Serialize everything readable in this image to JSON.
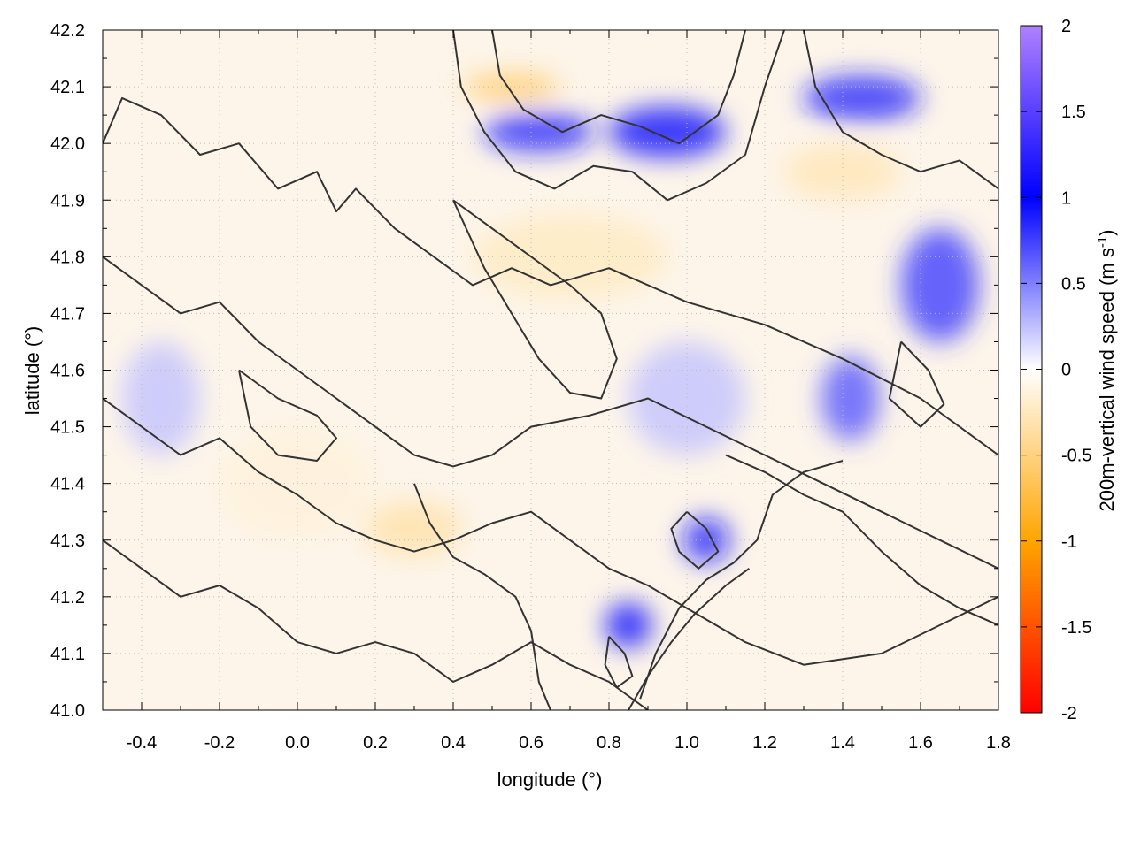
{
  "chart_data": {
    "type": "heatmap",
    "xlabel": "longitude (°)",
    "ylabel": "latitude (°)",
    "xlim": [
      -0.5,
      1.8
    ],
    "ylim": [
      41.0,
      42.2
    ],
    "x_ticks": [
      -0.4,
      -0.2,
      0.0,
      0.2,
      0.4,
      0.6,
      0.8,
      1.0,
      1.2,
      1.4,
      1.6,
      1.8
    ],
    "x_tick_labels": [
      "-0.4",
      "-0.2",
      "0.0",
      "0.2",
      "0.4",
      "0.6",
      "0.8",
      "1.0",
      "1.2",
      "1.4",
      "1.6",
      "1.8"
    ],
    "y_ticks": [
      41.0,
      41.1,
      41.2,
      41.3,
      41.4,
      41.5,
      41.6,
      41.7,
      41.8,
      41.9,
      42.0,
      42.1,
      42.2
    ],
    "y_tick_labels": [
      "41.0",
      "41.1",
      "41.2",
      "41.3",
      "41.4",
      "41.5",
      "41.6",
      "41.7",
      "41.8",
      "41.9",
      "42.0",
      "42.1",
      "42.2"
    ],
    "grid": true,
    "colorbar": {
      "label_main": "200m-vertical wind speed (m s",
      "label_sup": "-1",
      "label_close": ")",
      "range": [
        -2,
        2
      ],
      "ticks": [
        2,
        1.5,
        1,
        0.5,
        0,
        -0.5,
        -1,
        -1.5,
        -2
      ],
      "tick_labels": [
        "2",
        "1.5",
        "1",
        "0.5",
        "0",
        "-0.5",
        "-1",
        "-1.5",
        "-2"
      ],
      "colors": [
        "#ff0000",
        "#ffa500",
        "#ffffff",
        "#0000ff",
        "#b080ff"
      ]
    },
    "features": [
      {
        "lon": 0.62,
        "lat": 42.02,
        "w": 0.28,
        "h": 0.07,
        "value": 0.9
      },
      {
        "lon": 0.95,
        "lat": 42.02,
        "w": 0.3,
        "h": 0.09,
        "value": 1.0
      },
      {
        "lon": 0.55,
        "lat": 42.1,
        "w": 0.25,
        "h": 0.05,
        "value": -0.6
      },
      {
        "lon": 1.45,
        "lat": 42.08,
        "w": 0.3,
        "h": 0.08,
        "value": 0.9
      },
      {
        "lon": 1.65,
        "lat": 41.75,
        "w": 0.2,
        "h": 0.2,
        "value": 0.8
      },
      {
        "lon": 1.42,
        "lat": 41.55,
        "w": 0.15,
        "h": 0.15,
        "value": 0.7
      },
      {
        "lon": 1.05,
        "lat": 41.3,
        "w": 0.12,
        "h": 0.08,
        "value": 1.1
      },
      {
        "lon": 0.85,
        "lat": 41.15,
        "w": 0.12,
        "h": 0.08,
        "value": 1.0
      },
      {
        "lon": 0.7,
        "lat": 41.8,
        "w": 0.5,
        "h": 0.15,
        "value": -0.25
      },
      {
        "lon": 0.3,
        "lat": 41.32,
        "w": 0.25,
        "h": 0.1,
        "value": -0.35
      },
      {
        "lon": 0.0,
        "lat": 41.4,
        "w": 0.4,
        "h": 0.2,
        "value": -0.15
      },
      {
        "lon": 1.4,
        "lat": 41.95,
        "w": 0.3,
        "h": 0.1,
        "value": -0.3
      },
      {
        "lon": -0.35,
        "lat": 41.55,
        "w": 0.2,
        "h": 0.2,
        "value": 0.25
      },
      {
        "lon": 1.0,
        "lat": 41.55,
        "w": 0.3,
        "h": 0.2,
        "value": 0.25
      }
    ],
    "contours": [
      [
        [
          -0.5,
          42.0
        ],
        [
          -0.45,
          42.08
        ],
        [
          -0.35,
          42.05
        ],
        [
          -0.25,
          41.98
        ],
        [
          -0.15,
          42.0
        ],
        [
          -0.05,
          41.92
        ],
        [
          0.05,
          41.95
        ],
        [
          0.1,
          41.88
        ],
        [
          0.15,
          41.92
        ],
        [
          0.25,
          41.85
        ],
        [
          0.35,
          41.8
        ],
        [
          0.45,
          41.75
        ],
        [
          0.55,
          41.78
        ],
        [
          0.65,
          41.75
        ],
        [
          0.8,
          41.78
        ],
        [
          1.0,
          41.72
        ],
        [
          1.2,
          41.68
        ],
        [
          1.4,
          41.62
        ],
        [
          1.6,
          41.55
        ],
        [
          1.8,
          41.45
        ]
      ],
      [
        [
          -0.5,
          41.8
        ],
        [
          -0.4,
          41.75
        ],
        [
          -0.3,
          41.7
        ],
        [
          -0.2,
          41.72
        ],
        [
          -0.1,
          41.65
        ],
        [
          0.0,
          41.6
        ],
        [
          0.1,
          41.55
        ],
        [
          0.2,
          41.5
        ],
        [
          0.3,
          41.45
        ],
        [
          0.4,
          41.43
        ],
        [
          0.5,
          41.45
        ],
        [
          0.6,
          41.5
        ],
        [
          0.75,
          41.52
        ],
        [
          0.9,
          41.55
        ],
        [
          1.05,
          41.5
        ],
        [
          1.2,
          41.45
        ],
        [
          1.35,
          41.4
        ],
        [
          1.5,
          41.35
        ],
        [
          1.65,
          41.3
        ],
        [
          1.8,
          41.25
        ]
      ],
      [
        [
          -0.5,
          41.55
        ],
        [
          -0.4,
          41.5
        ],
        [
          -0.3,
          41.45
        ],
        [
          -0.2,
          41.48
        ],
        [
          -0.1,
          41.42
        ],
        [
          0.0,
          41.38
        ],
        [
          0.1,
          41.33
        ],
        [
          0.2,
          41.3
        ],
        [
          0.3,
          41.28
        ],
        [
          0.4,
          41.3
        ],
        [
          0.5,
          41.33
        ],
        [
          0.6,
          41.35
        ],
        [
          0.7,
          41.3
        ],
        [
          0.8,
          41.25
        ],
        [
          0.9,
          41.22
        ],
        [
          1.0,
          41.18
        ],
        [
          1.15,
          41.12
        ],
        [
          1.3,
          41.08
        ],
        [
          1.5,
          41.1
        ],
        [
          1.8,
          41.2
        ]
      ],
      [
        [
          -0.5,
          41.3
        ],
        [
          -0.4,
          41.25
        ],
        [
          -0.3,
          41.2
        ],
        [
          -0.2,
          41.22
        ],
        [
          -0.1,
          41.18
        ],
        [
          0.0,
          41.12
        ],
        [
          0.1,
          41.1
        ],
        [
          0.2,
          41.12
        ],
        [
          0.3,
          41.1
        ],
        [
          0.4,
          41.05
        ],
        [
          0.5,
          41.08
        ],
        [
          0.6,
          41.12
        ],
        [
          0.7,
          41.08
        ],
        [
          0.8,
          41.05
        ],
        [
          0.9,
          41.0
        ]
      ],
      [
        [
          0.4,
          42.2
        ],
        [
          0.42,
          42.1
        ],
        [
          0.48,
          42.02
        ],
        [
          0.56,
          41.95
        ],
        [
          0.66,
          41.92
        ],
        [
          0.76,
          41.96
        ],
        [
          0.86,
          41.95
        ],
        [
          0.95,
          41.9
        ],
        [
          1.05,
          41.93
        ],
        [
          1.15,
          41.98
        ],
        [
          1.2,
          42.1
        ],
        [
          1.25,
          42.2
        ]
      ],
      [
        [
          0.5,
          42.2
        ],
        [
          0.52,
          42.12
        ],
        [
          0.58,
          42.06
        ],
        [
          0.68,
          42.02
        ],
        [
          0.78,
          42.05
        ],
        [
          0.88,
          42.03
        ],
        [
          0.98,
          42.0
        ],
        [
          1.08,
          42.05
        ],
        [
          1.12,
          42.12
        ],
        [
          1.15,
          42.2
        ]
      ],
      [
        [
          1.3,
          42.2
        ],
        [
          1.33,
          42.1
        ],
        [
          1.4,
          42.02
        ],
        [
          1.5,
          41.98
        ],
        [
          1.6,
          41.95
        ],
        [
          1.7,
          41.97
        ],
        [
          1.8,
          41.92
        ]
      ],
      [
        [
          1.1,
          41.45
        ],
        [
          1.2,
          41.42
        ],
        [
          1.3,
          41.38
        ],
        [
          1.4,
          41.35
        ],
        [
          1.5,
          41.28
        ],
        [
          1.6,
          41.22
        ],
        [
          1.7,
          41.18
        ],
        [
          1.8,
          41.15
        ]
      ],
      [
        [
          0.88,
          41.02
        ],
        [
          0.92,
          41.1
        ],
        [
          0.98,
          41.18
        ],
        [
          1.05,
          41.23
        ],
        [
          1.12,
          41.26
        ],
        [
          1.18,
          41.3
        ],
        [
          1.22,
          41.38
        ],
        [
          1.3,
          41.42
        ],
        [
          1.4,
          41.44
        ]
      ],
      [
        [
          0.85,
          41.0
        ],
        [
          0.9,
          41.06
        ],
        [
          0.96,
          41.12
        ],
        [
          1.02,
          41.17
        ],
        [
          1.1,
          41.22
        ],
        [
          1.16,
          41.25
        ]
      ],
      [
        [
          0.3,
          41.4
        ],
        [
          0.34,
          41.33
        ],
        [
          0.4,
          41.27
        ],
        [
          0.48,
          41.24
        ],
        [
          0.56,
          41.2
        ],
        [
          0.6,
          41.14
        ],
        [
          0.62,
          41.05
        ],
        [
          0.65,
          41.0
        ]
      ],
      [
        [
          -0.15,
          41.6
        ],
        [
          -0.05,
          41.55
        ],
        [
          0.05,
          41.52
        ],
        [
          0.1,
          41.48
        ],
        [
          0.05,
          41.44
        ],
        [
          -0.05,
          41.45
        ],
        [
          -0.12,
          41.5
        ],
        [
          -0.15,
          41.6
        ]
      ],
      [
        [
          0.4,
          41.9
        ],
        [
          0.5,
          41.85
        ],
        [
          0.6,
          41.8
        ],
        [
          0.7,
          41.75
        ],
        [
          0.78,
          41.7
        ],
        [
          0.82,
          41.62
        ],
        [
          0.78,
          41.55
        ],
        [
          0.7,
          41.56
        ],
        [
          0.62,
          41.62
        ],
        [
          0.55,
          41.7
        ],
        [
          0.48,
          41.78
        ],
        [
          0.4,
          41.9
        ]
      ],
      [
        [
          1.0,
          41.35
        ],
        [
          1.05,
          41.32
        ],
        [
          1.08,
          41.28
        ],
        [
          1.03,
          41.25
        ],
        [
          0.98,
          41.28
        ],
        [
          0.96,
          41.32
        ],
        [
          1.0,
          41.35
        ]
      ],
      [
        [
          0.8,
          41.13
        ],
        [
          0.84,
          41.1
        ],
        [
          0.86,
          41.06
        ],
        [
          0.82,
          41.04
        ],
        [
          0.79,
          41.08
        ],
        [
          0.8,
          41.13
        ]
      ],
      [
        [
          1.55,
          41.65
        ],
        [
          1.62,
          41.6
        ],
        [
          1.66,
          41.54
        ],
        [
          1.6,
          41.5
        ],
        [
          1.52,
          41.55
        ],
        [
          1.55,
          41.65
        ]
      ]
    ]
  }
}
